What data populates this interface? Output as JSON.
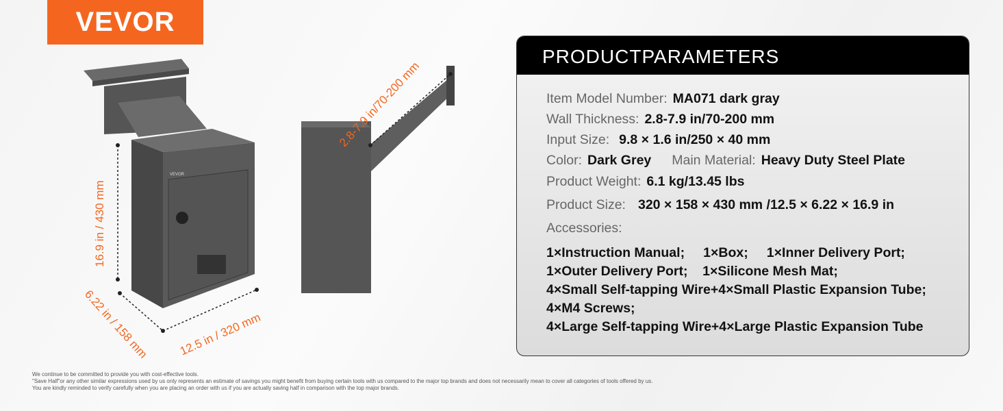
{
  "brand": {
    "logo": "VEVOR",
    "color": "#f4661f"
  },
  "product_image": {
    "box_label": "VEVOR"
  },
  "dimensions": {
    "height": "16.9 in / 430 mm",
    "depth": "6.22 in / 158 mm",
    "width": "12.5 in / 320 mm",
    "wall": "2.8-7.9 in/70-200 mm"
  },
  "parameters": {
    "title": "PRODUCTPARAMETERS",
    "rows": [
      {
        "label": "Item Model Number:",
        "value": "MA071 dark gray"
      },
      {
        "label": "Wall Thickness:",
        "value": "2.8-7.9 in/70-200 mm"
      },
      {
        "label": "Input Size:",
        "value": "9.8 × 1.6 in/250 × 40 mm"
      },
      {
        "label": "Color:",
        "value": "Dark Grey",
        "label2": "Main Material:",
        "value2": "Heavy Duty Steel Plate"
      },
      {
        "label": "Product Weight:",
        "value": "6.1 kg/13.45 lbs"
      },
      {
        "label": "Product Size:",
        "value": "320 × 158 × 430 mm /12.5 × 6.22 × 16.9 in"
      },
      {
        "label": "Accessories:"
      }
    ],
    "accessories": [
      "1×Instruction Manual;     1×Box;     1×Inner Delivery Port;",
      "1×Outer Delivery Port;    1×Silicone Mesh Mat;",
      "4×Small Self-tapping Wire+4×Small Plastic Expansion Tube;",
      "4×M4 Screws;",
      "4×Large Self-tapping Wire+4×Large Plastic Expansion Tube"
    ]
  },
  "footer": [
    "We continue to be committed to provide you with cost-effective tools.",
    "\"Save Half\"or any other similar expressions used by us only represents an estimate of savings you might benefit from buying certain tools with us compared to the major top brands and does not necessarily mean to cover all categories of tools offered by us.",
    "You are kindly reminded to verify carefully when you are placing an order with us if you are actually saving half in comparison with the top major brands."
  ]
}
